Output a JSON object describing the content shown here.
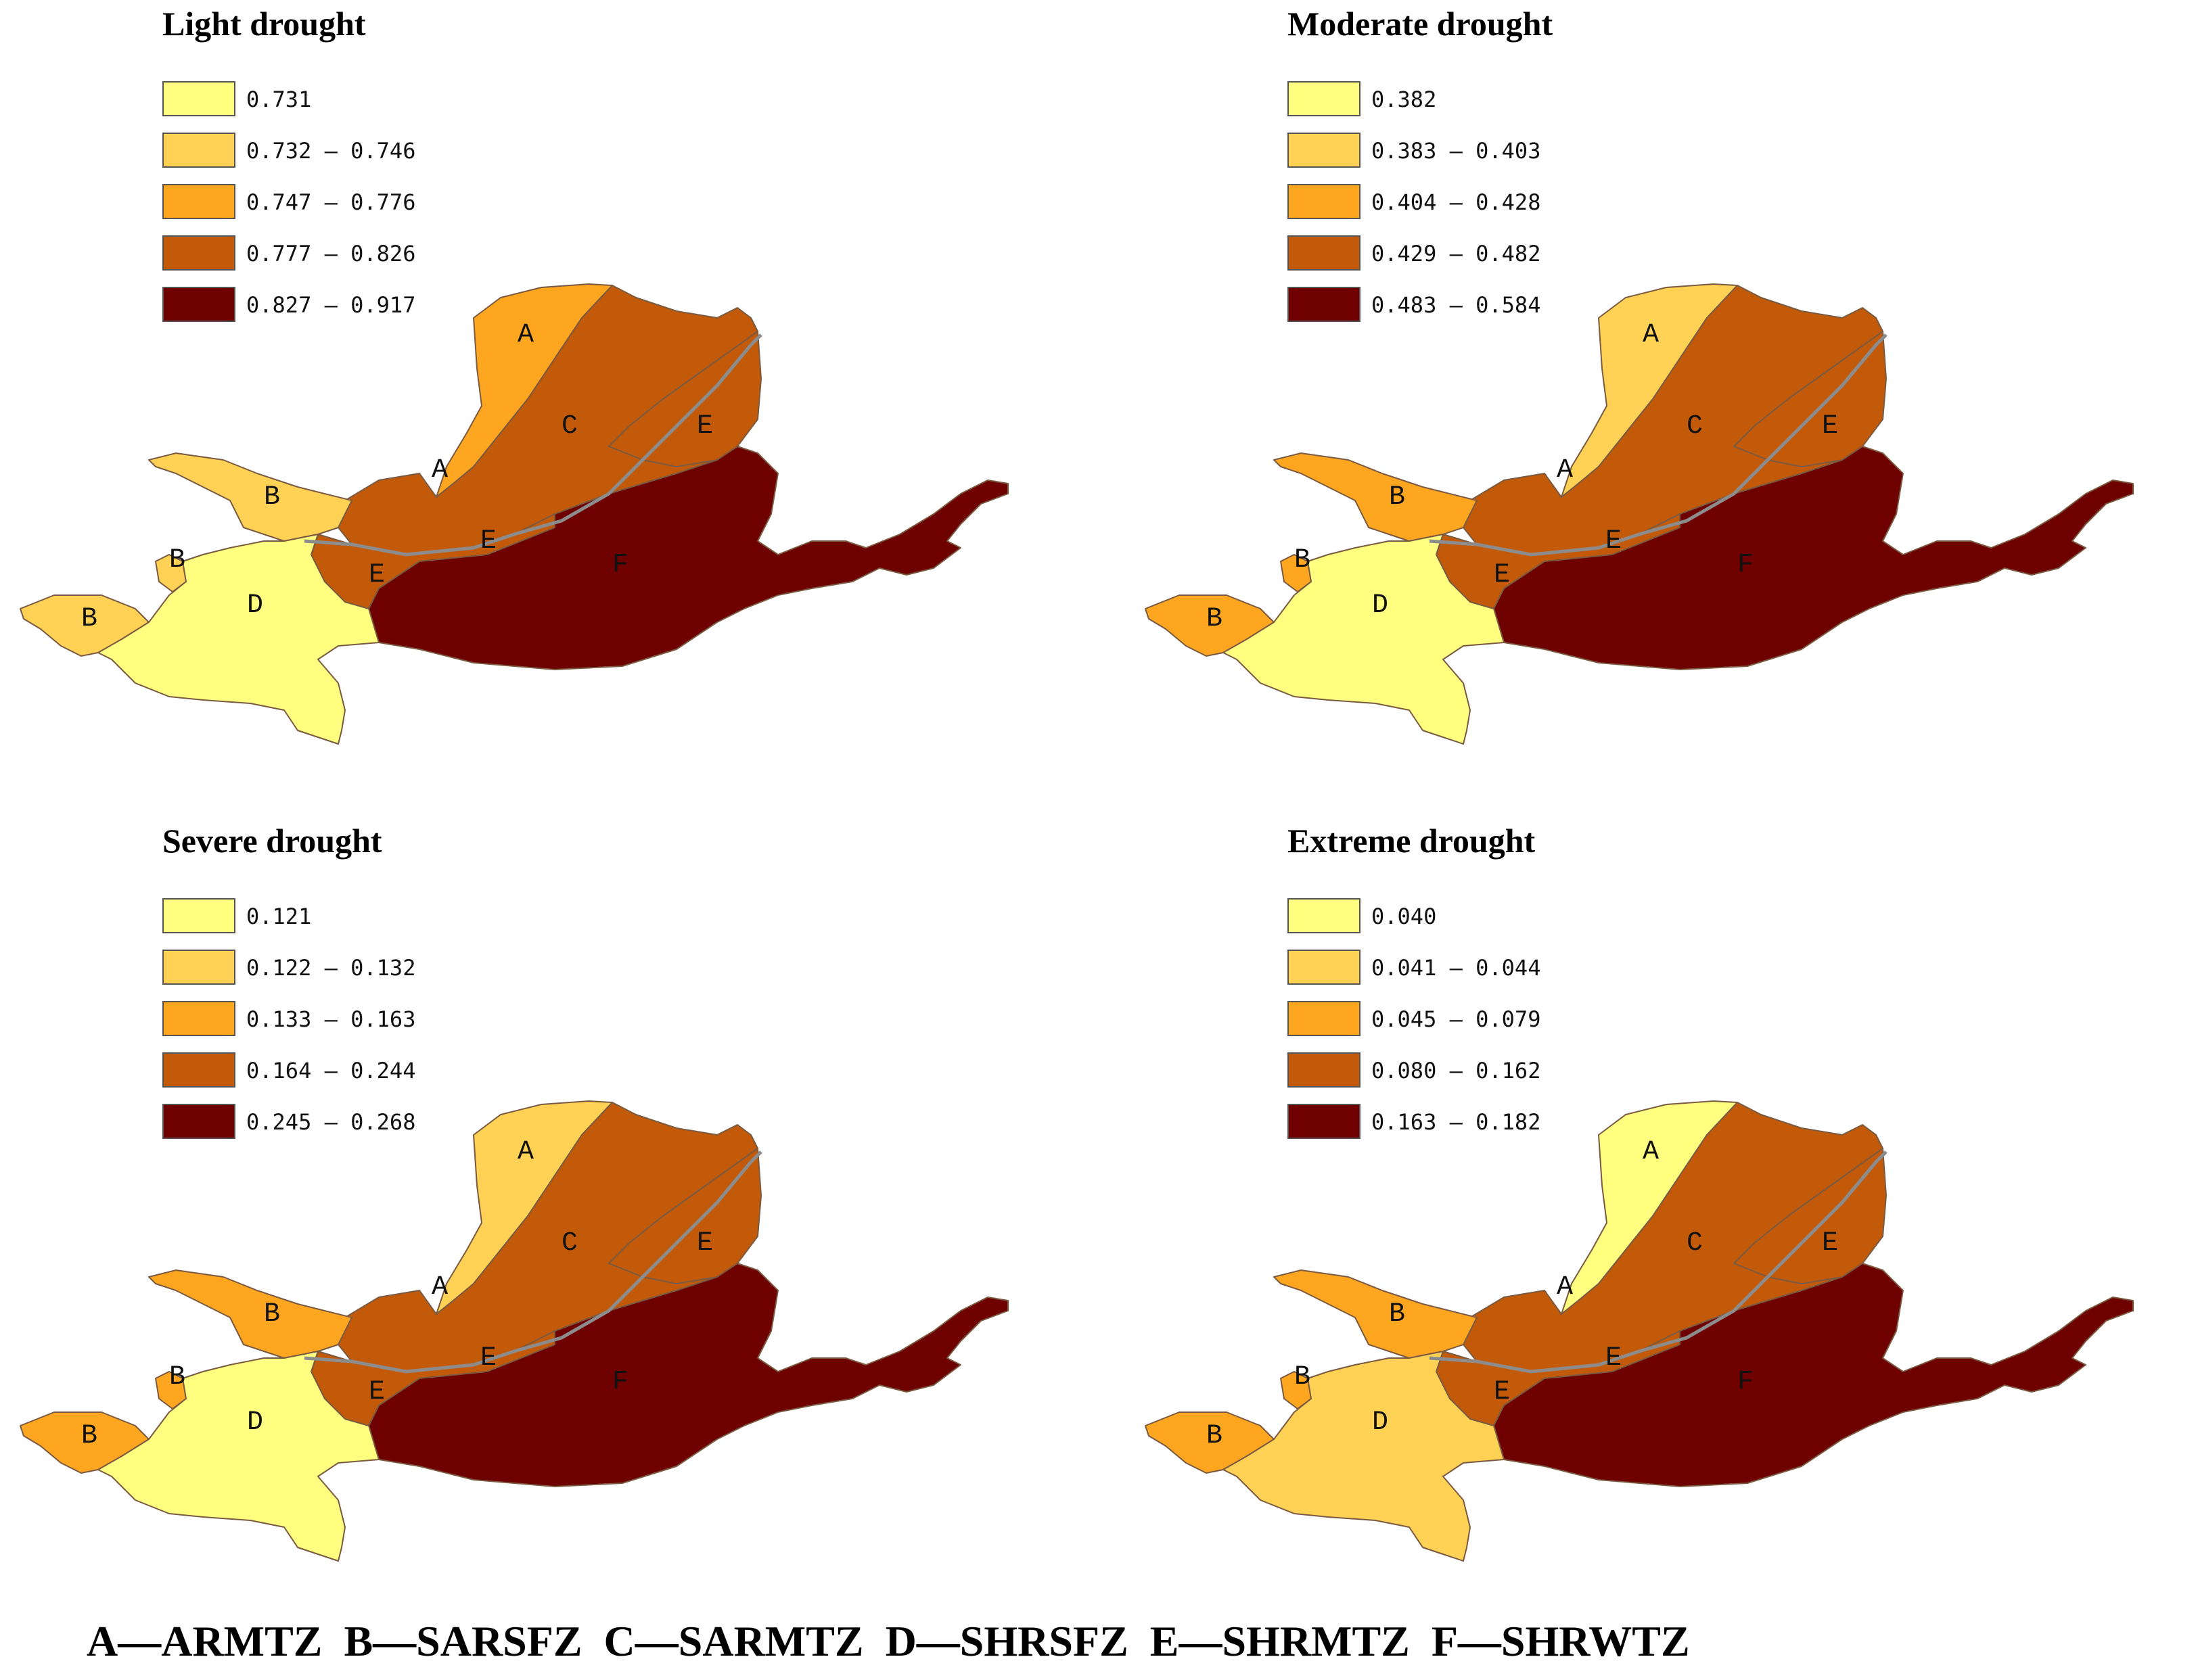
{
  "colors": {
    "class_1": "#FFFF80",
    "class_2": "#FFD155",
    "class_3": "#FFA621",
    "class_4": "#C25A0A",
    "class_5": "#6E0000",
    "river": "#8C8C8C"
  },
  "panels": [
    {
      "title": "Light drought",
      "legend": [
        "0.731",
        "0.732 – 0.746",
        "0.747 – 0.776",
        "0.777 – 0.826",
        "0.827 – 0.917"
      ],
      "zone_class": {
        "A": 3,
        "B": 2,
        "C": 4,
        "D": 1,
        "E": 4,
        "F": 5
      }
    },
    {
      "title": "Moderate drought",
      "legend": [
        "0.382",
        "0.383 – 0.403",
        "0.404 – 0.428",
        "0.429 – 0.482",
        "0.483 – 0.584"
      ],
      "zone_class": {
        "A": 2,
        "B": 3,
        "C": 4,
        "D": 1,
        "E": 4,
        "F": 5
      }
    },
    {
      "title": "Severe drought",
      "legend": [
        "0.121",
        "0.122 – 0.132",
        "0.133 – 0.163",
        "0.164 – 0.244",
        "0.245 – 0.268"
      ],
      "zone_class": {
        "A": 2,
        "B": 3,
        "C": 4,
        "D": 1,
        "E": 4,
        "F": 5
      }
    },
    {
      "title": "Extreme drought",
      "legend": [
        "0.040",
        "0.041 – 0.044",
        "0.045 – 0.079",
        "0.080 – 0.162",
        "0.163 – 0.182"
      ],
      "zone_class": {
        "A": 1,
        "B": 3,
        "C": 4,
        "D": 2,
        "E": 4,
        "F": 5
      }
    }
  ],
  "zone_labels": [
    "A",
    "B",
    "C",
    "D",
    "E",
    "F"
  ],
  "footer": "A—ARMTZ  B—SARSFZ  C—SARMTZ  D—SHRSFZ  E—SHRMTZ  F—SHRWTZ"
}
